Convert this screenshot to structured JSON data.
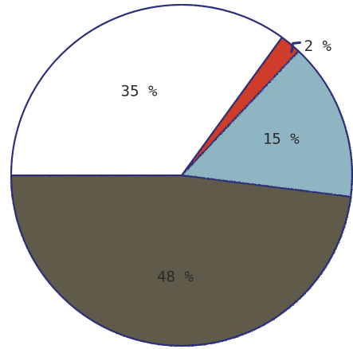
{
  "chart_data": {
    "type": "pie",
    "values": [
      48,
      15,
      2,
      35
    ],
    "labels": [
      "48 %",
      "15 %",
      "2 %",
      "35 %"
    ],
    "colors": [
      "#5e5a48",
      "#8fb4c2",
      "#cf3d2a",
      "#ffffff"
    ],
    "outline_color": "#2b2f78",
    "start_angle_deg": 180
  }
}
